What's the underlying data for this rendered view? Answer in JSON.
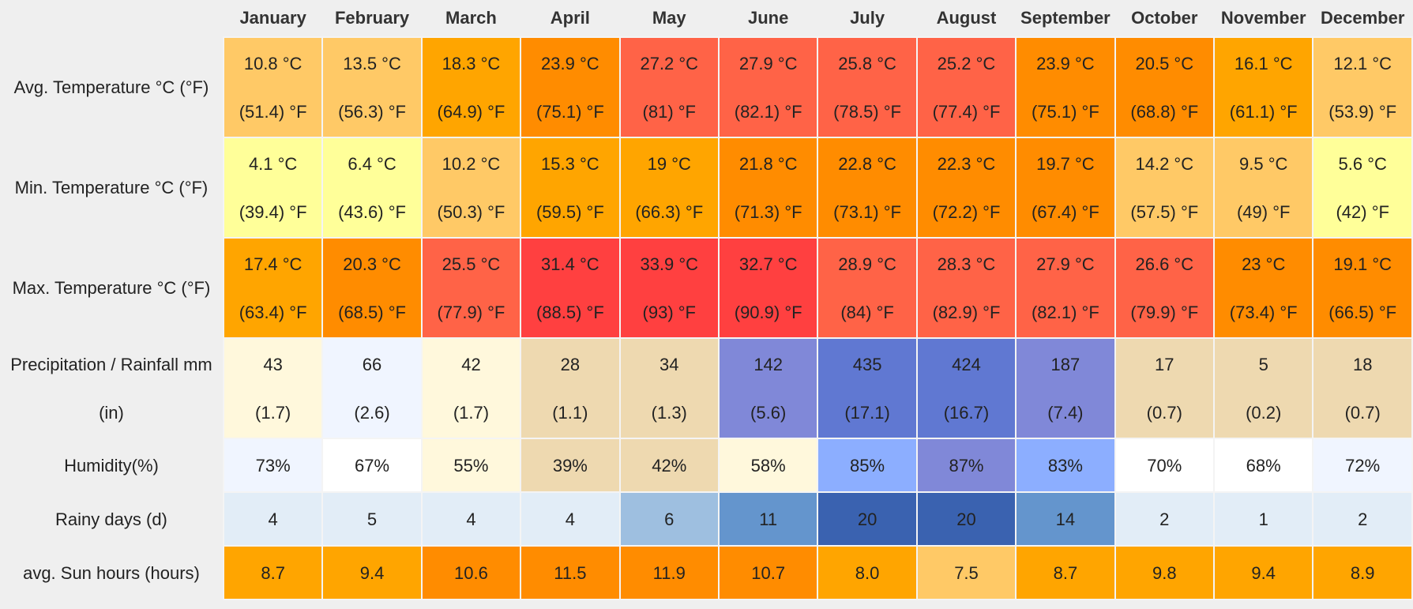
{
  "months": [
    "January",
    "February",
    "March",
    "April",
    "May",
    "June",
    "July",
    "August",
    "September",
    "October",
    "November",
    "December"
  ],
  "rows": [
    {
      "label": "Avg. Temperature °C (°F)",
      "type": "two",
      "cells": [
        {
          "v1": "10.8 °C",
          "v2": "(51.4) °F",
          "bg": "#ffc966"
        },
        {
          "v1": "13.5 °C",
          "v2": "(56.3) °F",
          "bg": "#ffc966"
        },
        {
          "v1": "18.3 °C",
          "v2": "(64.9) °F",
          "bg": "#ffa500"
        },
        {
          "v1": "23.9 °C",
          "v2": "(75.1) °F",
          "bg": "#ff8c00"
        },
        {
          "v1": "27.2 °C",
          "v2": "(81) °F",
          "bg": "#ff6347"
        },
        {
          "v1": "27.9 °C",
          "v2": "(82.1) °F",
          "bg": "#ff6347"
        },
        {
          "v1": "25.8 °C",
          "v2": "(78.5) °F",
          "bg": "#ff6347"
        },
        {
          "v1": "25.2 °C",
          "v2": "(77.4) °F",
          "bg": "#ff6347"
        },
        {
          "v1": "23.9 °C",
          "v2": "(75.1) °F",
          "bg": "#ff8c00"
        },
        {
          "v1": "20.5 °C",
          "v2": "(68.8) °F",
          "bg": "#ff8c00"
        },
        {
          "v1": "16.1 °C",
          "v2": "(61.1) °F",
          "bg": "#ffa500"
        },
        {
          "v1": "12.1 °C",
          "v2": "(53.9) °F",
          "bg": "#ffc966"
        }
      ]
    },
    {
      "label": "Min. Temperature °C (°F)",
      "type": "two",
      "cells": [
        {
          "v1": "4.1 °C",
          "v2": "(39.4) °F",
          "bg": "#ffff99"
        },
        {
          "v1": "6.4 °C",
          "v2": "(43.6) °F",
          "bg": "#ffff99"
        },
        {
          "v1": "10.2 °C",
          "v2": "(50.3) °F",
          "bg": "#ffc966"
        },
        {
          "v1": "15.3 °C",
          "v2": "(59.5) °F",
          "bg": "#ffa500"
        },
        {
          "v1": "19 °C",
          "v2": "(66.3) °F",
          "bg": "#ffa500"
        },
        {
          "v1": "21.8 °C",
          "v2": "(71.3) °F",
          "bg": "#ff8c00"
        },
        {
          "v1": "22.8 °C",
          "v2": "(73.1) °F",
          "bg": "#ff8c00"
        },
        {
          "v1": "22.3 °C",
          "v2": "(72.2) °F",
          "bg": "#ff8c00"
        },
        {
          "v1": "19.7 °C",
          "v2": "(67.4) °F",
          "bg": "#ff8c00"
        },
        {
          "v1": "14.2 °C",
          "v2": "(57.5) °F",
          "bg": "#ffc966"
        },
        {
          "v1": "9.5 °C",
          "v2": "(49) °F",
          "bg": "#ffc966"
        },
        {
          "v1": "5.6 °C",
          "v2": "(42) °F",
          "bg": "#ffff99"
        }
      ]
    },
    {
      "label": "Max. Temperature °C (°F)",
      "type": "two",
      "cells": [
        {
          "v1": "17.4 °C",
          "v2": "(63.4) °F",
          "bg": "#ffa500"
        },
        {
          "v1": "20.3 °C",
          "v2": "(68.5) °F",
          "bg": "#ff8c00"
        },
        {
          "v1": "25.5 °C",
          "v2": "(77.9) °F",
          "bg": "#ff6347"
        },
        {
          "v1": "31.4 °C",
          "v2": "(88.5) °F",
          "bg": "#ff4040"
        },
        {
          "v1": "33.9 °C",
          "v2": "(93) °F",
          "bg": "#ff4040"
        },
        {
          "v1": "32.7 °C",
          "v2": "(90.9) °F",
          "bg": "#ff4040"
        },
        {
          "v1": "28.9 °C",
          "v2": "(84) °F",
          "bg": "#ff6347"
        },
        {
          "v1": "28.3 °C",
          "v2": "(82.9) °F",
          "bg": "#ff6347"
        },
        {
          "v1": "27.9 °C",
          "v2": "(82.1) °F",
          "bg": "#ff6347"
        },
        {
          "v1": "26.6 °C",
          "v2": "(79.9) °F",
          "bg": "#ff6347"
        },
        {
          "v1": "23 °C",
          "v2": "(73.4) °F",
          "bg": "#ff8c00"
        },
        {
          "v1": "19.1 °C",
          "v2": "(66.5) °F",
          "bg": "#ff8c00"
        }
      ]
    },
    {
      "label": "Precipitation / Rainfall mm (in)",
      "type": "two",
      "cells": [
        {
          "v1": "43",
          "v2": "(1.7)",
          "bg": "#fff8dc"
        },
        {
          "v1": "66",
          "v2": "(2.6)",
          "bg": "#f0f5ff"
        },
        {
          "v1": "42",
          "v2": "(1.7)",
          "bg": "#fff8dc"
        },
        {
          "v1": "28",
          "v2": "(1.1)",
          "bg": "#eed9b0"
        },
        {
          "v1": "34",
          "v2": "(1.3)",
          "bg": "#eed9b0"
        },
        {
          "v1": "142",
          "v2": "(5.6)",
          "bg": "#8088d8"
        },
        {
          "v1": "435",
          "v2": "(17.1)",
          "bg": "#6078d2"
        },
        {
          "v1": "424",
          "v2": "(16.7)",
          "bg": "#6078d2"
        },
        {
          "v1": "187",
          "v2": "(7.4)",
          "bg": "#8088d8"
        },
        {
          "v1": "17",
          "v2": "(0.7)",
          "bg": "#eed9b0"
        },
        {
          "v1": "5",
          "v2": "(0.2)",
          "bg": "#eed9b0"
        },
        {
          "v1": "18",
          "v2": "(0.7)",
          "bg": "#eed9b0"
        }
      ]
    },
    {
      "label": "Humidity(%)",
      "type": "one",
      "cells": [
        {
          "v1": "73%",
          "bg": "#f0f5ff"
        },
        {
          "v1": "67%",
          "bg": "#ffffff"
        },
        {
          "v1": "55%",
          "bg": "#fff8dc"
        },
        {
          "v1": "39%",
          "bg": "#eed9b0"
        },
        {
          "v1": "42%",
          "bg": "#eed9b0"
        },
        {
          "v1": "58%",
          "bg": "#fff8dc"
        },
        {
          "v1": "85%",
          "bg": "#8caeff"
        },
        {
          "v1": "87%",
          "bg": "#8088d8"
        },
        {
          "v1": "83%",
          "bg": "#8caeff"
        },
        {
          "v1": "70%",
          "bg": "#ffffff"
        },
        {
          "v1": "68%",
          "bg": "#ffffff"
        },
        {
          "v1": "72%",
          "bg": "#f0f5ff"
        }
      ]
    },
    {
      "label": "Rainy days (d)",
      "type": "one",
      "cells": [
        {
          "v1": "4",
          "bg": "#e2edf7"
        },
        {
          "v1": "5",
          "bg": "#e2edf7"
        },
        {
          "v1": "4",
          "bg": "#e2edf7"
        },
        {
          "v1": "4",
          "bg": "#e2edf7"
        },
        {
          "v1": "6",
          "bg": "#9ebfe0"
        },
        {
          "v1": "11",
          "bg": "#6495cd"
        },
        {
          "v1": "20",
          "bg": "#3a62b0"
        },
        {
          "v1": "20",
          "bg": "#3a62b0"
        },
        {
          "v1": "14",
          "bg": "#6495cd"
        },
        {
          "v1": "2",
          "bg": "#e2edf7"
        },
        {
          "v1": "1",
          "bg": "#e2edf7"
        },
        {
          "v1": "2",
          "bg": "#e2edf7"
        }
      ]
    },
    {
      "label": "avg. Sun hours (hours)",
      "type": "one",
      "cells": [
        {
          "v1": "8.7",
          "bg": "#ffa500"
        },
        {
          "v1": "9.4",
          "bg": "#ffa500"
        },
        {
          "v1": "10.6",
          "bg": "#ff8c00"
        },
        {
          "v1": "11.5",
          "bg": "#ff8c00"
        },
        {
          "v1": "11.9",
          "bg": "#ff8c00"
        },
        {
          "v1": "10.7",
          "bg": "#ff8c00"
        },
        {
          "v1": "8.0",
          "bg": "#ffa500"
        },
        {
          "v1": "7.5",
          "bg": "#ffc966"
        },
        {
          "v1": "8.7",
          "bg": "#ffa500"
        },
        {
          "v1": "9.8",
          "bg": "#ffa500"
        },
        {
          "v1": "9.4",
          "bg": "#ffa500"
        },
        {
          "v1": "8.9",
          "bg": "#ffa500"
        }
      ]
    }
  ]
}
